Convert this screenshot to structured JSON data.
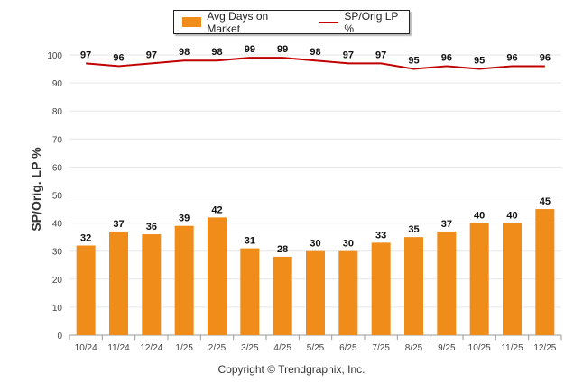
{
  "legend": {
    "bar_label": "Avg Days on Market",
    "line_label": "SP/Orig LP %"
  },
  "ylabel": "SP/Orig. LP %",
  "copyright": "Copyright © Trendgraphix, Inc.",
  "colors": {
    "bar": "#f08c1a",
    "line": "#c00000",
    "grid": "#e6e6e6",
    "axis": "#555555"
  },
  "chart_data": {
    "type": "bar",
    "categories": [
      "10/24",
      "11/24",
      "12/24",
      "1/25",
      "2/25",
      "3/25",
      "4/25",
      "5/25",
      "6/25",
      "7/25",
      "8/25",
      "9/25",
      "10/25",
      "11/25",
      "12/25"
    ],
    "series": [
      {
        "name": "Avg Days on Market",
        "type": "bar",
        "values": [
          32,
          37,
          36,
          39,
          42,
          31,
          28,
          30,
          30,
          33,
          35,
          37,
          40,
          40,
          45
        ]
      },
      {
        "name": "SP/Orig LP %",
        "type": "line",
        "values": [
          97,
          96,
          97,
          98,
          98,
          99,
          99,
          98,
          97,
          97,
          95,
          96,
          95,
          96,
          96
        ]
      }
    ],
    "yticks": [
      0,
      10,
      20,
      30,
      40,
      50,
      60,
      70,
      80,
      90,
      100
    ],
    "ylim": [
      0,
      100
    ],
    "ylabel": "SP/Orig. LP %",
    "xlabel": "",
    "grid": true,
    "legend_position": "top-center"
  }
}
